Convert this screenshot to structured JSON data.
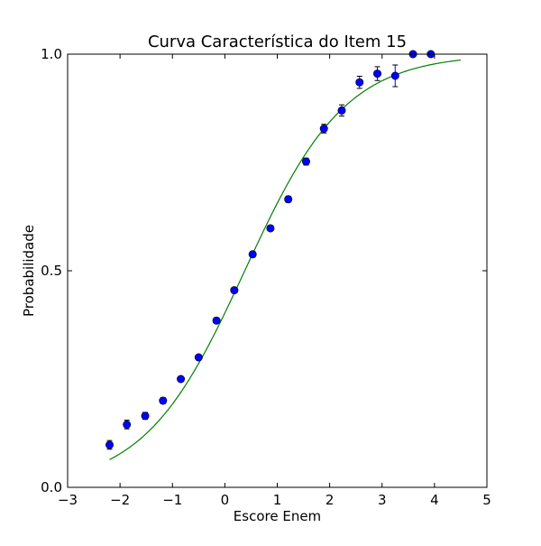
{
  "chart_data": {
    "type": "scatter",
    "title": "Curva Característica do Item 15",
    "xlabel": "Escore Enem",
    "ylabel": "Probabilidade",
    "xlim": [
      -3,
      5
    ],
    "ylim": [
      0.0,
      1.0
    ],
    "x_ticks": [
      {
        "value": -3,
        "label": "−3"
      },
      {
        "value": -2,
        "label": "−2"
      },
      {
        "value": -1,
        "label": "−1"
      },
      {
        "value": 0,
        "label": "0"
      },
      {
        "value": 1,
        "label": "1"
      },
      {
        "value": 2,
        "label": "2"
      },
      {
        "value": 3,
        "label": "3"
      },
      {
        "value": 4,
        "label": "4"
      },
      {
        "value": 5,
        "label": "5"
      }
    ],
    "y_ticks": [
      {
        "value": 0.0,
        "label": "0.0"
      },
      {
        "value": 0.5,
        "label": "0.5"
      },
      {
        "value": 1.0,
        "label": "1.0"
      }
    ],
    "grid": false,
    "series": [
      {
        "kind": "points-with-errorbars",
        "color": "#0000ff",
        "x": [
          -2.2,
          -1.87,
          -1.52,
          -1.18,
          -0.84,
          -0.5,
          -0.16,
          0.18,
          0.53,
          0.87,
          1.21,
          1.55,
          1.89,
          2.23,
          2.57,
          2.91,
          3.25,
          3.59,
          3.93
        ],
        "y": [
          0.098,
          0.145,
          0.165,
          0.2,
          0.25,
          0.3,
          0.385,
          0.455,
          0.538,
          0.598,
          0.665,
          0.752,
          0.828,
          0.87,
          0.935,
          0.955,
          0.95,
          1.0,
          1.0
        ],
        "err": [
          0.01,
          0.01,
          0.008,
          0.007,
          0.006,
          0.006,
          0.006,
          0.006,
          0.006,
          0.006,
          0.007,
          0.008,
          0.01,
          0.013,
          0.014,
          0.016,
          0.025,
          0.004,
          0.004
        ]
      },
      {
        "kind": "fitted-curve",
        "color": "#008000",
        "function": "logistic",
        "center": 0.38,
        "slope": 1.04,
        "x_range": [
          -2.2,
          4.5
        ]
      }
    ]
  }
}
